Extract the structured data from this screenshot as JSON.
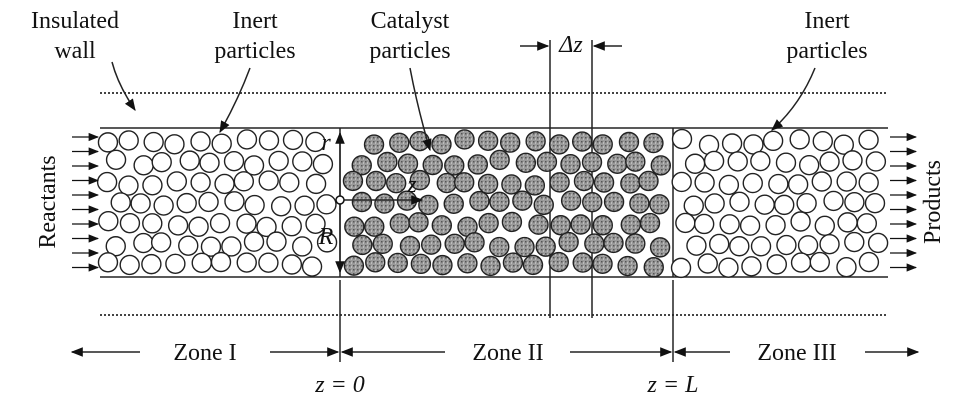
{
  "callouts": {
    "insulated_wall": [
      "Insulated",
      "wall"
    ],
    "inert_left": [
      "Inert",
      "particles"
    ],
    "catalyst": [
      "Catalyst",
      "particles"
    ],
    "inert_right": [
      "Inert",
      "particles"
    ],
    "delta_z": "Δz"
  },
  "flow": {
    "inlet": "Reactants",
    "outlet": "Products"
  },
  "coordinates": {
    "r": "r",
    "z": "z",
    "radius": "R"
  },
  "zones": {
    "zone_1": "Zone I",
    "zone_2": "Zone II",
    "zone_3": "Zone III"
  },
  "positions": {
    "start": "z = 0",
    "end": "z = L"
  }
}
